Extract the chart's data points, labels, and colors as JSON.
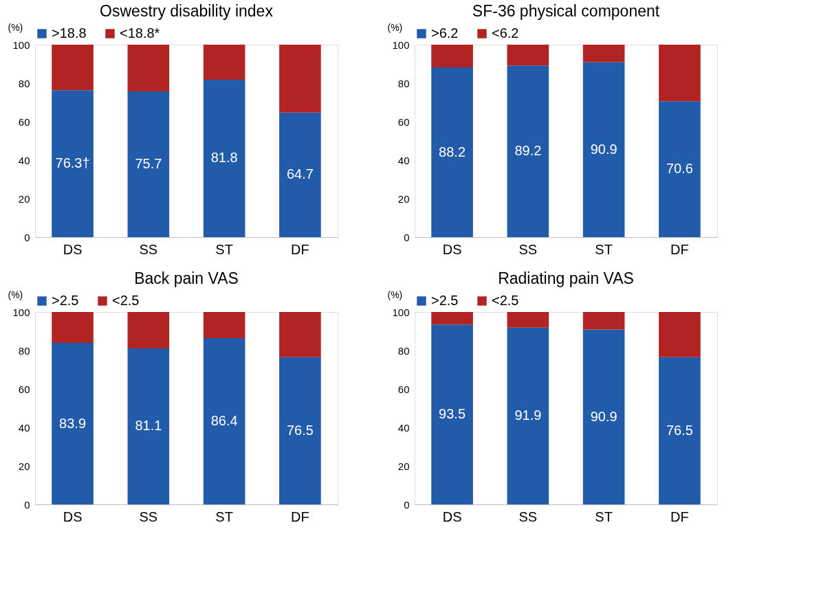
{
  "chart_data": [
    {
      "type": "bar",
      "title": "Oswestry disability index",
      "ylabel": "(%)",
      "categories": [
        "DS",
        "SS",
        "ST",
        "DF"
      ],
      "stacked": true,
      "legend": "top",
      "grid": false,
      "ylim": [
        0,
        100
      ],
      "yticks": [
        0,
        20,
        40,
        60,
        80,
        100
      ],
      "series": [
        {
          "name": ">18.8",
          "color": "#235bab",
          "values": [
            76.3,
            75.7,
            81.8,
            64.7
          ],
          "value_labels": [
            "76.3†",
            "75.7",
            "81.8",
            "64.7"
          ]
        },
        {
          "name": "<18.8*",
          "color": "#b22424",
          "values": [
            23.7,
            24.3,
            18.2,
            35.3
          ]
        }
      ]
    },
    {
      "type": "bar",
      "title": "SF-36 physical component",
      "ylabel": "(%)",
      "categories": [
        "DS",
        "SS",
        "ST",
        "DF"
      ],
      "stacked": true,
      "legend": "top",
      "grid": false,
      "ylim": [
        0,
        100
      ],
      "yticks": [
        0,
        20,
        40,
        60,
        80,
        100
      ],
      "series": [
        {
          "name": ">6.2",
          "color": "#235bab",
          "values": [
            88.2,
            89.2,
            90.9,
            70.6
          ],
          "value_labels": [
            "88.2",
            "89.2",
            "90.9",
            "70.6"
          ]
        },
        {
          "name": "<6.2",
          "color": "#b22424",
          "values": [
            11.8,
            10.8,
            9.1,
            29.4
          ]
        }
      ]
    },
    {
      "type": "bar",
      "title": "Back pain VAS",
      "ylabel": "(%)",
      "categories": [
        "DS",
        "SS",
        "ST",
        "DF"
      ],
      "stacked": true,
      "legend": "top",
      "grid": false,
      "ylim": [
        0,
        100
      ],
      "yticks": [
        0,
        20,
        40,
        60,
        80,
        100
      ],
      "series": [
        {
          "name": ">2.5",
          "color": "#235bab",
          "values": [
            83.9,
            81.1,
            86.4,
            76.5
          ],
          "value_labels": [
            "83.9",
            "81.1",
            "86.4",
            "76.5"
          ]
        },
        {
          "name": "<2.5",
          "color": "#b22424",
          "values": [
            16.1,
            18.9,
            13.6,
            23.5
          ]
        }
      ]
    },
    {
      "type": "bar",
      "title": "Radiating pain VAS",
      "ylabel": "(%)",
      "categories": [
        "DS",
        "SS",
        "ST",
        "DF"
      ],
      "stacked": true,
      "legend": "top",
      "grid": false,
      "ylim": [
        0,
        100
      ],
      "yticks": [
        0,
        20,
        40,
        60,
        80,
        100
      ],
      "series": [
        {
          "name": ">2.5",
          "color": "#235bab",
          "values": [
            93.5,
            91.9,
            90.9,
            76.5
          ],
          "value_labels": [
            "93.5",
            "91.9",
            "90.9",
            "76.5"
          ]
        },
        {
          "name": "<2.5",
          "color": "#b22424",
          "values": [
            6.5,
            8.1,
            9.1,
            23.5
          ]
        }
      ]
    }
  ]
}
